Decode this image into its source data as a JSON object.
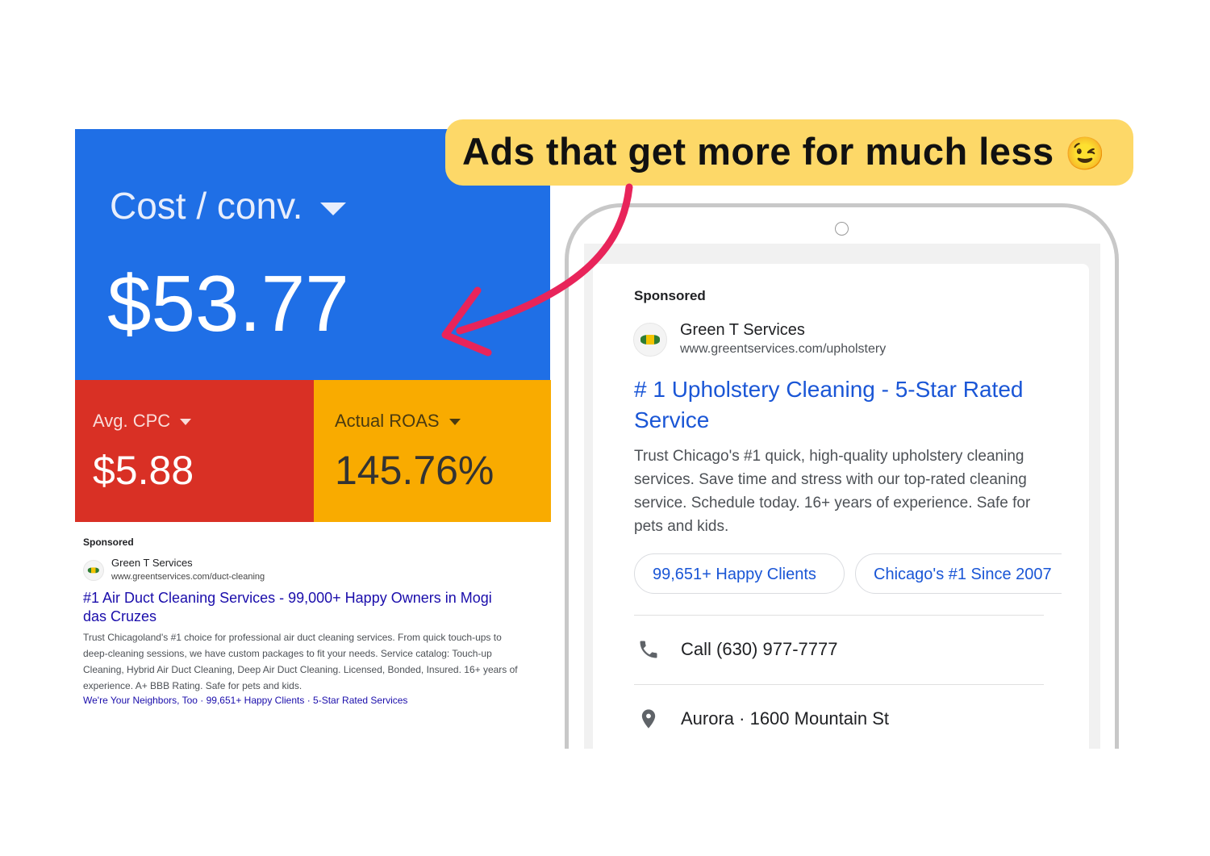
{
  "callout": {
    "text": "Ads that get more for much less",
    "emoji": "😉"
  },
  "metrics": {
    "cost_per_conv": {
      "label": "Cost / conv.",
      "value": "$53.77",
      "color": "#1f6fe6"
    },
    "avg_cpc": {
      "label": "Avg. CPC",
      "value": "$5.88",
      "color": "#d93025"
    },
    "actual_roas": {
      "label": "Actual ROAS",
      "value": "145.76%",
      "color": "#f9ab00"
    }
  },
  "desktop_ad": {
    "sponsored": "Sponsored",
    "advertiser": "Green T Services",
    "url": "www.greentservices.com/duct-cleaning",
    "headline": "#1 Air Duct Cleaning Services - 99,000+ Happy Owners in Mogi das Cruzes",
    "description": "Trust Chicagoland's #1 choice for professional air duct cleaning services. From quick touch-ups to deep-cleaning sessions, we have custom packages to fit your needs. Service catalog: Touch-up Cleaning, Hybrid Air Duct Cleaning, Deep Air Duct Cleaning. Licensed, Bonded, Insured. 16+ years of experience. A+ BBB Rating. Safe for pets and kids.",
    "sitelinks": [
      "We're Your Neighbors, Too",
      "99,651+ Happy Clients",
      "5-Star Rated Services"
    ],
    "separator": " · "
  },
  "mobile_ad": {
    "sponsored": "Sponsored",
    "advertiser": "Green T Services",
    "url": "www.greentservices.com/upholstery",
    "headline": "# 1 Upholstery Cleaning - 5-Star Rated Service",
    "description": "Trust Chicago's #1 quick, high-quality upholstery cleaning services. Save time and stress with our top-rated cleaning service. Schedule today. 16+ years of experience. Safe for pets and kids.",
    "chips": [
      "99,651+ Happy Clients",
      "Chicago's #1 Since 2007"
    ],
    "call": "Call (630) 977-7777",
    "location": "Aurora · 1600 Mountain St"
  },
  "colors": {
    "arrow": "#e8245a",
    "link": "#1a0dab",
    "mobile_link": "#1a56d6",
    "callout": "#fdd868"
  }
}
